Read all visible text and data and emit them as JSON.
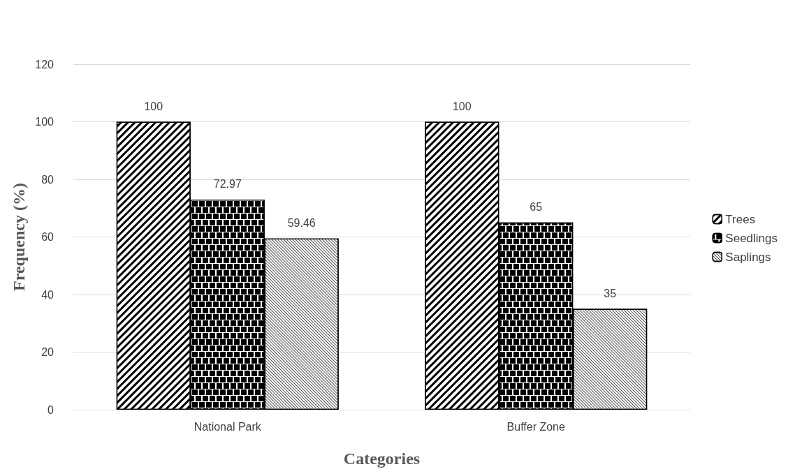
{
  "chart_data": {
    "type": "bar",
    "xlabel": "Categories",
    "ylabel": "Frequency (%)",
    "categories": [
      "National Park",
      "Buffer Zone"
    ],
    "series": [
      {
        "name": "Trees",
        "color": "#ffffff",
        "values": [
          100,
          100
        ]
      },
      {
        "name": "Seedlings",
        "color": "#ffffff",
        "values": [
          72.97,
          65
        ]
      },
      {
        "name": "Saplings",
        "color": "#ffffff",
        "values": [
          59.46,
          35
        ]
      }
    ],
    "ylim": [
      0,
      120
    ],
    "yticks": [
      0,
      20,
      40,
      60,
      80,
      100,
      120
    ],
    "grid": "y",
    "legend": "right",
    "data_labels": true
  }
}
